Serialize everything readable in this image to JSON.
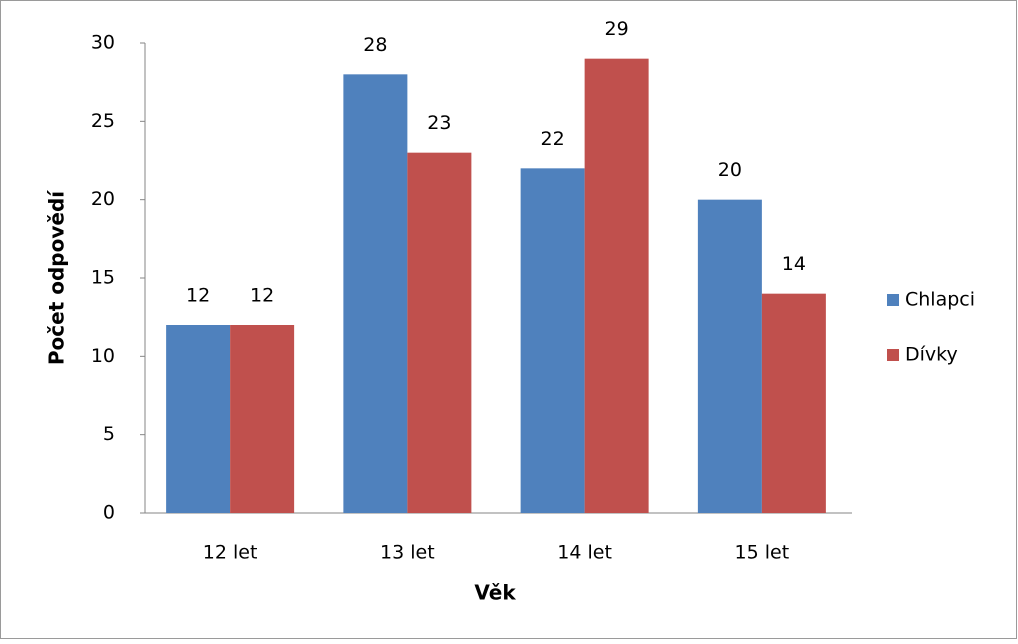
{
  "chart_data": {
    "type": "bar",
    "categories": [
      "12 let",
      "13 let",
      "14 let",
      "15 let"
    ],
    "series": [
      {
        "name": "Chlapci",
        "color": "#4f81bd",
        "values": [
          12,
          28,
          22,
          20
        ]
      },
      {
        "name": "Dívky",
        "color": "#c0504d",
        "values": [
          12,
          23,
          29,
          14
        ]
      }
    ],
    "ylim": [
      0,
      30
    ],
    "yticks": [
      0,
      5,
      10,
      15,
      20,
      25,
      30
    ],
    "xlabel": "Věk",
    "ylabel": "Počet odpovědí",
    "legend": "right",
    "grid": false
  }
}
